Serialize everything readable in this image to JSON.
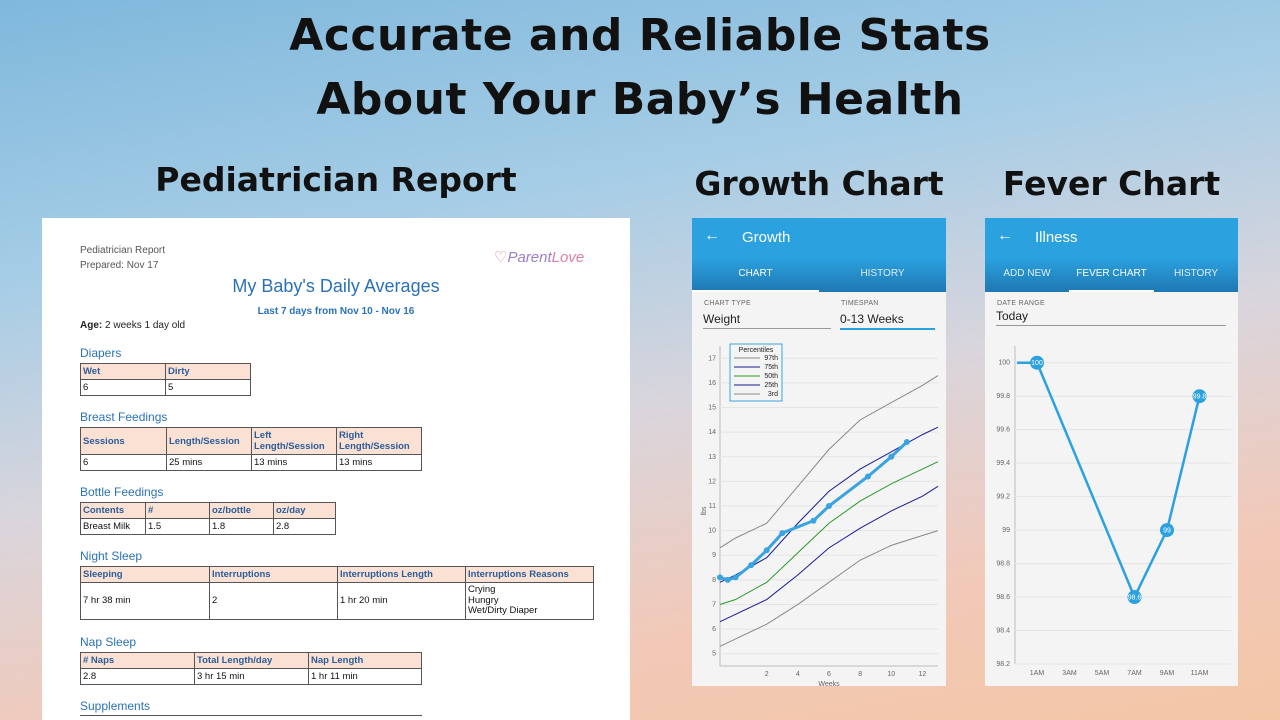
{
  "headline": {
    "line1": "Accurate and Reliable Stats",
    "line2": "About Your Baby’s Health"
  },
  "sections": {
    "report": "Pediatrician Report",
    "growth": "Growth Chart",
    "fever": "Fever Chart"
  },
  "report": {
    "header_title": "Pediatrician Report",
    "prepared": "Prepared: Nov 17",
    "logo_part1": "Parent",
    "logo_part2": "Love",
    "title": "My Baby's Daily Averages",
    "subtitle": "Last 7 days from Nov 10 - Nov 16",
    "age_label": "Age:",
    "age_value": "2 weeks 1 day old",
    "diapers": {
      "heading": "Diapers",
      "headers": [
        "Wet",
        "Dirty"
      ],
      "rows": [
        [
          "6",
          "5"
        ]
      ]
    },
    "breast": {
      "heading": "Breast Feedings",
      "headers": [
        "Sessions",
        "Length/Session",
        "Left Length/Session",
        "Right Length/Session"
      ],
      "rows": [
        [
          "6",
          "25 mins",
          "13 mins",
          "13 mins"
        ]
      ]
    },
    "bottle": {
      "heading": "Bottle Feedings",
      "headers": [
        "Contents",
        "#",
        "oz/bottle",
        "oz/day"
      ],
      "rows": [
        [
          "Breast Milk",
          "1.5",
          "1.8",
          "2.8"
        ]
      ]
    },
    "night": {
      "heading": "Night Sleep",
      "headers": [
        "Sleeping",
        "Interruptions",
        "Interruptions Length",
        "Interruptions Reasons"
      ],
      "rows": [
        [
          "7 hr 38 min",
          "2",
          "1 hr 20 min",
          "Crying\nHungry\nWet/Dirty Diaper"
        ]
      ]
    },
    "nap": {
      "heading": "Nap Sleep",
      "headers": [
        "# Naps",
        "Total Length/day",
        "Nap Length"
      ],
      "rows": [
        [
          "2.8",
          "3 hr 15 min",
          "1 hr 11 min"
        ]
      ]
    },
    "supplements": {
      "heading": "Supplements"
    }
  },
  "growth_app": {
    "back_icon": "arrow-left-icon",
    "title": "Growth",
    "tabs": [
      {
        "label": "CHART",
        "active": true
      },
      {
        "label": "HISTORY",
        "active": false
      }
    ],
    "chart_type_label": "CHART TYPE",
    "chart_type_value": "Weight",
    "timespan_label": "TIMESPAN",
    "timespan_value": "0-13 Weeks",
    "accent": "#2ba1df"
  },
  "fever_app": {
    "back_icon": "arrow-left-icon",
    "title": "Illness",
    "tabs": [
      {
        "label": "ADD NEW",
        "active": false
      },
      {
        "label": "FEVER CHART",
        "active": true
      },
      {
        "label": "HISTORY",
        "active": false
      }
    ],
    "date_range_label": "DATE RANGE",
    "date_range_value": "Today"
  },
  "chart_data": [
    {
      "type": "line",
      "title": "",
      "xlabel": "Weeks",
      "ylabel": "lbs",
      "xlim": [
        -1,
        13
      ],
      "ylim": [
        4.5,
        17.5
      ],
      "xticks": [
        2,
        4,
        6,
        8,
        10,
        12
      ],
      "yticks": [
        5,
        6,
        7,
        8,
        9,
        10,
        11,
        12,
        13,
        14,
        15,
        16,
        17
      ],
      "legend_title": "Percentiles",
      "legend_position": "top-left",
      "series": [
        {
          "name": "97th",
          "color": "#888888",
          "x": [
            -1,
            0,
            2,
            4,
            6,
            8,
            10,
            12,
            13
          ],
          "y": [
            9.3,
            9.7,
            10.3,
            11.8,
            13.3,
            14.5,
            15.2,
            15.9,
            16.3
          ]
        },
        {
          "name": "75th",
          "color": "#1a1a9a",
          "x": [
            -1,
            0,
            2,
            4,
            6,
            8,
            10,
            12,
            13
          ],
          "y": [
            7.9,
            8.2,
            8.9,
            10.3,
            11.6,
            12.5,
            13.2,
            13.9,
            14.2
          ]
        },
        {
          "name": "50th",
          "color": "#2a9a2a",
          "x": [
            -1,
            0,
            2,
            4,
            6,
            8,
            10,
            12,
            13
          ],
          "y": [
            7.0,
            7.2,
            7.9,
            9.1,
            10.3,
            11.2,
            11.9,
            12.5,
            12.8
          ]
        },
        {
          "name": "25th",
          "color": "#1a1a9a",
          "x": [
            -1,
            0,
            2,
            4,
            6,
            8,
            10,
            12,
            13
          ],
          "y": [
            6.3,
            6.6,
            7.2,
            8.2,
            9.3,
            10.1,
            10.8,
            11.4,
            11.8
          ]
        },
        {
          "name": "3rd",
          "color": "#888888",
          "x": [
            -1,
            0,
            2,
            4,
            6,
            8,
            10,
            12,
            13
          ],
          "y": [
            5.3,
            5.6,
            6.2,
            7.0,
            7.9,
            8.8,
            9.4,
            9.8,
            10.0
          ]
        },
        {
          "name": "",
          "color": "#3aa3e0",
          "marker": true,
          "x": [
            -1,
            -0.5,
            0,
            1,
            2,
            3,
            5,
            6,
            8.5,
            10,
            11
          ],
          "y": [
            8.1,
            8.0,
            8.1,
            8.6,
            9.2,
            9.9,
            10.4,
            11.0,
            12.2,
            13.0,
            13.6
          ]
        }
      ]
    },
    {
      "type": "line",
      "title": "",
      "xlabel": "",
      "ylabel": "",
      "categories": [
        "1AM",
        "3AM",
        "5AM",
        "7AM",
        "9AM",
        "11AM"
      ],
      "ylim": [
        98.2,
        100.1
      ],
      "yticks": [
        "98.2",
        "98.4",
        "98.6",
        "98.8",
        "99",
        "99.2",
        "99.4",
        "99.6",
        "99.8",
        "100"
      ],
      "series": [
        {
          "name": "",
          "color": "#2ba1df",
          "x": [
            0.5,
            1,
            4,
            5,
            6
          ],
          "y": [
            100,
            100,
            98.6,
            99,
            99.8
          ],
          "labels": [
            "",
            "100",
            "98.6",
            "99",
            "99.8"
          ]
        }
      ]
    }
  ]
}
